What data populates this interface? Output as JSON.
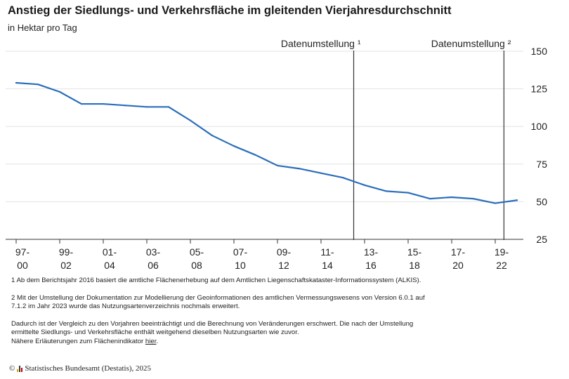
{
  "title": "Anstieg der Siedlungs- und Verkehrsfläche im gleitenden Vierjahresdurchschnitt",
  "subtitle": "in Hektar pro Tag",
  "chart_data": {
    "type": "line",
    "title": "Anstieg der Siedlungs- und Verkehrsfläche im gleitenden Vierjahresdurchschnitt",
    "ylabel": "in Hektar pro Tag",
    "ylim": [
      25,
      150
    ],
    "yticks": [
      25,
      50,
      75,
      100,
      125,
      150
    ],
    "grid": true,
    "legend": "none",
    "line_color": "#2a6ebb",
    "x_tick_labels": [
      [
        "97-",
        "00"
      ],
      [
        "99-",
        "02"
      ],
      [
        "01-",
        "04"
      ],
      [
        "03-",
        "06"
      ],
      [
        "05-",
        "08"
      ],
      [
        "07-",
        "10"
      ],
      [
        "09-",
        "12"
      ],
      [
        "11-",
        "14"
      ],
      [
        "13-",
        "16"
      ],
      [
        "15-",
        "18"
      ],
      [
        "17-",
        "20"
      ],
      [
        "19-",
        "22"
      ]
    ],
    "x": [
      "97-00",
      "98-01",
      "99-02",
      "00-03",
      "01-04",
      "02-05",
      "03-06",
      "04-07",
      "05-08",
      "06-09",
      "07-10",
      "08-11",
      "09-12",
      "10-13",
      "11-14",
      "12-15",
      "13-16",
      "14-17",
      "15-18",
      "16-19",
      "17-20",
      "18-21",
      "19-22",
      "20-23"
    ],
    "series": [
      {
        "values": [
          129,
          128,
          123,
          115,
          115,
          114,
          113,
          113,
          104,
          94,
          87,
          81,
          74,
          72,
          69,
          66,
          61,
          57,
          56,
          52,
          53,
          52,
          49,
          51
        ]
      }
    ],
    "annotations": [
      {
        "text": "Datenumstellung ¹",
        "between": [
          "12-15",
          "13-16"
        ],
        "position": 0.5
      },
      {
        "text": "Datenumstellung ²",
        "between": [
          "19-22",
          "20-23"
        ],
        "position": 0.4
      }
    ]
  },
  "footnotes": {
    "note1": "1 Ab dem Berichtsjahr 2016 basiert die amtliche Flächenerhebung auf dem Amtlichen Liegenschaftskataster-Informationssystem (ALKIS).",
    "note2": "2 Mit der Umstellung der Dokumentation zur Modellierung der Geoinformationen des amtlichen Vermessungswesens von Version 6.0.1 auf 7.1.2 im Jahr 2023 wurde das Nutzungsartenverzeichnis nochmals erweitert.",
    "note3": "Dadurch ist der Vergleich zu den Vorjahren beeinträchtigt und die Berechnung von Veränderungen erschwert. Die nach der Umstellung ermittelte Siedlungs- und Verkehrsfläche enthält weitgehend dieselben Nutzungsarten wie zuvor.",
    "note4_prefix": "Nähere Erläuterungen zum Flächenindikator ",
    "note4_link": "hier",
    "note4_suffix": "."
  },
  "copyright": {
    "symbol": "©",
    "text": "Statistisches Bundesamt (Destatis), 2025"
  }
}
